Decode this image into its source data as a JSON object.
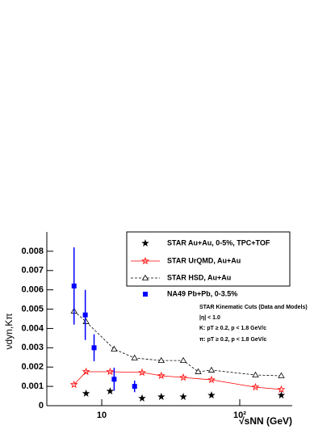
{
  "chart_data": {
    "type": "line",
    "xlabel": "√sNN (GeV)",
    "ylabel": "νdyn,Kπ",
    "xscale": "log",
    "xlim": [
      4,
      240
    ],
    "xticks": [
      10,
      {
        "value": 100,
        "label": "10²"
      }
    ],
    "ylim": [
      0,
      0.009
    ],
    "yticks": [
      0,
      0.001,
      0.002,
      0.003,
      0.004,
      0.005,
      0.006,
      0.007,
      0.008
    ],
    "series": [
      {
        "name": "STAR Au+Au, 0-5%, TPC+TOF",
        "color": "#000000",
        "marker": "star",
        "line": "none",
        "x": [
          7.7,
          11.5,
          19.6,
          27,
          39,
          62.4,
          200
        ],
        "values": [
          0.00063,
          0.00075,
          0.00038,
          0.00046,
          0.00046,
          0.00054,
          0.00054
        ]
      },
      {
        "name": "STAR UrQMD, Au+Au",
        "color": "#ff0000",
        "marker": "star-open",
        "line": "solid",
        "x": [
          6.3,
          7.7,
          11.5,
          19.6,
          27,
          39,
          62.4,
          130,
          200
        ],
        "values": [
          0.00109,
          0.00176,
          0.00176,
          0.00172,
          0.00155,
          0.00146,
          0.00134,
          0.00096,
          0.00084
        ]
      },
      {
        "name": "STAR HSD, Au+Au",
        "color": "#000000",
        "marker": "triangle-open",
        "line": "dashed",
        "x": [
          6.3,
          7.7,
          12.3,
          17.3,
          27,
          39,
          50,
          62.4,
          130,
          200
        ],
        "values": [
          0.0049,
          0.00435,
          0.00293,
          0.00247,
          0.00234,
          0.00234,
          0.00176,
          0.00184,
          0.00159,
          0.00155
        ]
      },
      {
        "name": "NA49 Pb+Pb, 0-3.5%",
        "color": "#0000ff",
        "marker": "square",
        "line": "none",
        "x": [
          6.3,
          7.6,
          8.8,
          12.3,
          17.3
        ],
        "values": [
          0.0062,
          0.0047,
          0.003,
          0.00137,
          0.001
        ],
        "errors": [
          0.002,
          0.0013,
          0.0007,
          0.0006,
          0.0003
        ]
      }
    ],
    "annotations": [
      "STAR Kinematic Cuts (Data and Models)",
      "|η| < 1.0",
      "K: pT ≥ 0.2, p < 1.8 GeV/c",
      "π: pT ≥ 0.2, p < 1.8 GeV/c"
    ]
  }
}
